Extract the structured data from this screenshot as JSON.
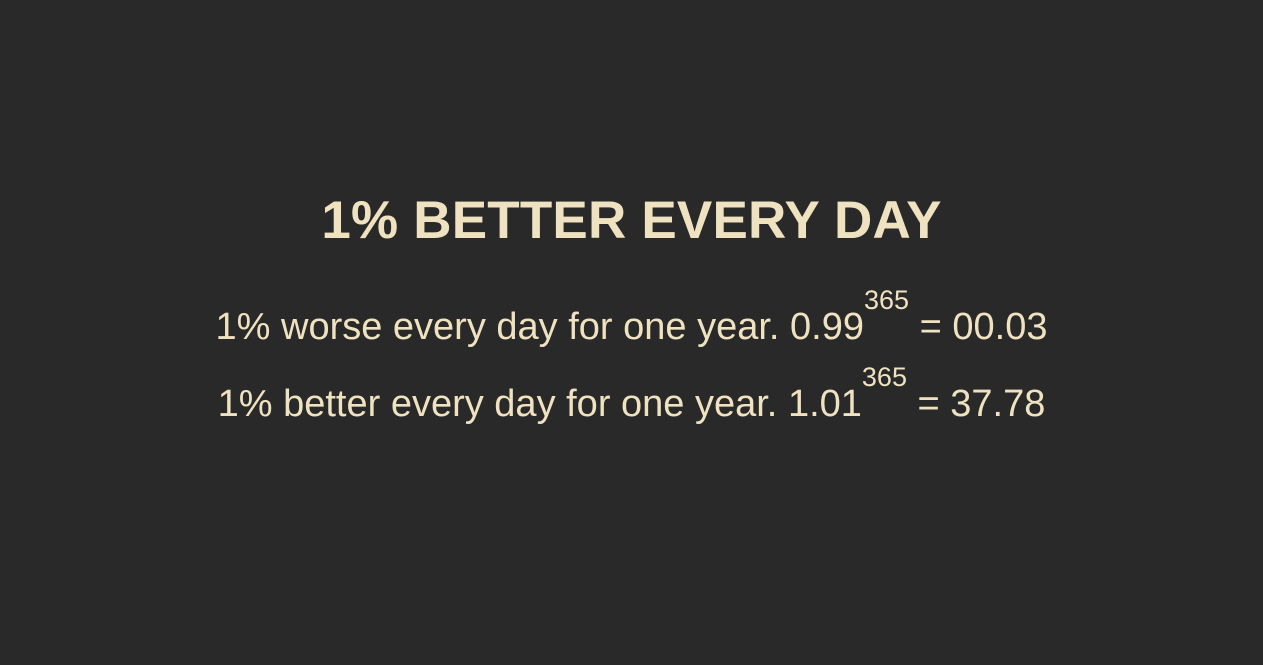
{
  "slide": {
    "title": "1% BETTER EVERY DAY",
    "lines": [
      {
        "text": "1% worse every day for one year. ",
        "base": "0.99",
        "exponent": "365",
        "result": " = 00.03"
      },
      {
        "text": "1% better every day for one year. ",
        "base": "1.01",
        "exponent": "365",
        "result": " = 37.78"
      }
    ]
  },
  "colors": {
    "background": "#292929",
    "text": "#efe2c0"
  }
}
